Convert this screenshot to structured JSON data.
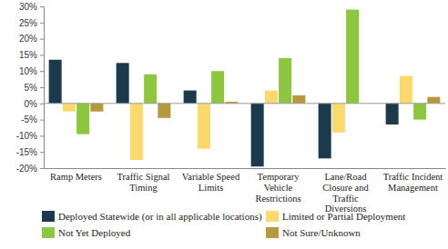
{
  "chart_data": {
    "type": "bar",
    "categories": [
      "Ramp Meters",
      "Traffic Signal Timing",
      "Variable Speed Limits",
      "Temporary Vehicle Restrictions",
      "Lane/Road Closure and Traffic Diversions",
      "Traffic Incident Management"
    ],
    "series": [
      {
        "name": "Deployed Statewide (or in all applicable locations)",
        "color": "#1b3a4b",
        "values": [
          13.5,
          12.5,
          4,
          -19.5,
          -17,
          -6.5
        ]
      },
      {
        "name": "Limited or Partial Deployment",
        "color": "#fcd96b",
        "values": [
          -2.5,
          -17.5,
          -14,
          4,
          -9,
          8.5
        ]
      },
      {
        "name": "Not Yet Deployed",
        "color": "#8dc63f",
        "values": [
          -9.5,
          9,
          10,
          14,
          29,
          -5
        ]
      },
      {
        "name": "Not Sure/Unknown",
        "color": "#b5993c",
        "values": [
          -2.5,
          -4.5,
          0.5,
          2.5,
          0,
          2
        ]
      }
    ],
    "ylim": [
      -20,
      30
    ],
    "yticks": [
      {
        "value": -20,
        "label": "-20%"
      },
      {
        "value": -15,
        "label": "-15%"
      },
      {
        "value": -10,
        "label": "-10%"
      },
      {
        "value": -5,
        "label": "-5%"
      },
      {
        "value": 0,
        "label": "0%"
      },
      {
        "value": 5,
        "label": "5%"
      },
      {
        "value": 10,
        "label": "10%"
      },
      {
        "value": 15,
        "label": "15%"
      },
      {
        "value": 20,
        "label": "20%"
      },
      {
        "value": 25,
        "label": "25%"
      },
      {
        "value": 30,
        "label": "30%"
      }
    ],
    "grid": false,
    "legend": "bottom"
  }
}
